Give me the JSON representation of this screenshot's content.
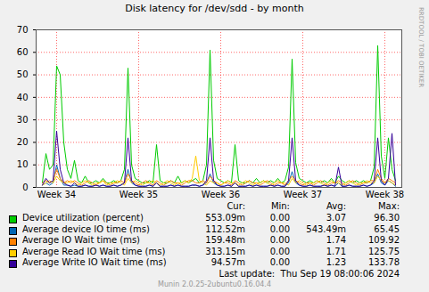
{
  "chart_data": {
    "type": "line",
    "title": "Disk latency for /dev/sdd - by month",
    "categories": [
      null,
      null,
      null,
      null,
      "Week 34",
      null,
      null,
      null,
      null,
      null,
      null,
      null,
      null,
      null,
      null,
      null,
      null,
      null,
      null,
      null,
      null,
      null,
      null,
      null,
      null,
      null,
      null,
      "Week 35",
      null,
      null,
      null,
      null,
      null,
      null,
      null,
      null,
      null,
      null,
      null,
      null,
      null,
      null,
      null,
      null,
      null,
      null,
      null,
      null,
      null,
      null,
      "Week 36",
      null,
      null,
      null,
      null,
      null,
      null,
      null,
      null,
      null,
      null,
      null,
      null,
      null,
      null,
      null,
      null,
      null,
      null,
      null,
      null,
      null,
      null,
      "Week 37",
      null,
      null,
      null,
      null,
      null,
      null,
      null,
      null,
      null,
      null,
      null,
      null,
      null,
      null,
      null,
      null,
      null,
      null,
      null,
      null,
      null,
      null,
      "Week 38",
      null,
      null,
      null
    ],
    "ylim": [
      0,
      70
    ],
    "yticks": [
      0,
      10,
      20,
      30,
      40,
      50,
      60,
      70
    ],
    "grid": true,
    "stats_header": [
      "Cur:",
      "Min:",
      "Avg:",
      "Max:"
    ],
    "series": [
      {
        "name": "Device utilization (percent)",
        "color": "#00cc00",
        "stats": [
          "553.09m",
          "0.00",
          "3.07",
          "96.30"
        ],
        "values": [
          2,
          15,
          8,
          10,
          54,
          50,
          20,
          8,
          4,
          12,
          3,
          2,
          5,
          2,
          2,
          3,
          2,
          4,
          2,
          2,
          3,
          2,
          3,
          8,
          53,
          10,
          4,
          3,
          2,
          2,
          3,
          2,
          19,
          3,
          2,
          2,
          3,
          2,
          5,
          2,
          3,
          2,
          3,
          4,
          2,
          3,
          10,
          61,
          12,
          4,
          3,
          2,
          3,
          2,
          19,
          3,
          2,
          2,
          3,
          2,
          4,
          2,
          3,
          2,
          3,
          2,
          4,
          2,
          3,
          9,
          57,
          11,
          4,
          3,
          2,
          3,
          2,
          3,
          2,
          3,
          2,
          4,
          2,
          5,
          3,
          2,
          3,
          2,
          3,
          2,
          3,
          2,
          3,
          9,
          63,
          14,
          4,
          22,
          8,
          3
        ]
      },
      {
        "name": "Average device IO time (ms)",
        "color": "#0066b3",
        "stats": [
          "112.52m",
          "0.00",
          "543.49m",
          "65.45"
        ],
        "values": [
          1,
          2,
          1,
          2,
          10,
          4,
          1,
          1,
          0.5,
          1,
          0.5,
          0.5,
          1,
          0.5,
          0.5,
          1,
          0.5,
          1,
          0.5,
          0.5,
          1,
          0.5,
          1,
          2,
          8,
          2,
          1,
          0.5,
          0.5,
          0.5,
          1,
          0.5,
          2,
          0.5,
          0.5,
          0.5,
          1,
          0.5,
          1,
          0.5,
          0.5,
          0.5,
          1,
          1,
          0.5,
          1,
          2,
          6,
          2,
          1,
          0.5,
          0.5,
          1,
          0.5,
          2,
          0.5,
          0.5,
          0.5,
          1,
          0.5,
          1,
          0.5,
          0.5,
          0.5,
          1,
          0.5,
          1,
          0.5,
          0.5,
          2,
          7,
          2,
          1,
          0.5,
          0.5,
          1,
          0.5,
          0.5,
          0.5,
          1,
          0.5,
          1,
          0.5,
          2,
          0.5,
          0.5,
          1,
          0.5,
          0.5,
          0.5,
          1,
          0.5,
          1,
          2,
          6,
          2,
          1,
          3,
          2,
          0.5
        ]
      },
      {
        "name": "Average IO Wait time (ms)",
        "color": "#ff8000",
        "stats": [
          "159.48m",
          "0.00",
          "1.74",
          "109.92"
        ],
        "values": [
          2,
          3,
          2,
          3,
          8,
          4,
          2,
          3,
          2,
          3,
          2,
          1,
          2,
          3,
          2,
          1,
          2,
          3,
          2,
          1,
          2,
          2,
          3,
          2,
          6,
          3,
          2,
          1,
          2,
          3,
          2,
          1,
          3,
          2,
          1,
          2,
          3,
          2,
          2,
          1,
          2,
          3,
          3,
          2,
          2,
          3,
          2,
          5,
          3,
          2,
          1,
          2,
          2,
          1,
          3,
          2,
          1,
          2,
          3,
          2,
          2,
          1,
          2,
          3,
          2,
          1,
          2,
          2,
          1,
          3,
          5,
          3,
          2,
          1,
          2,
          2,
          1,
          2,
          3,
          2,
          1,
          2,
          2,
          3,
          2,
          1,
          2,
          3,
          2,
          1,
          2,
          2,
          3,
          3,
          8,
          4,
          2,
          4,
          3,
          2
        ]
      },
      {
        "name": "Average Read IO Wait time (ms)",
        "color": "#ffcc00",
        "stats": [
          "313.15m",
          "0.00",
          "1.71",
          "125.75"
        ],
        "values": [
          1,
          2,
          3,
          2,
          5,
          3,
          2,
          2,
          3,
          2,
          1,
          2,
          3,
          2,
          1,
          2,
          2,
          3,
          1,
          2,
          2,
          3,
          2,
          1,
          4,
          2,
          3,
          2,
          1,
          2,
          2,
          3,
          2,
          1,
          2,
          3,
          2,
          1,
          2,
          2,
          3,
          2,
          4,
          14,
          3,
          2,
          1,
          3,
          2,
          2,
          1,
          2,
          3,
          2,
          2,
          1,
          2,
          3,
          2,
          1,
          2,
          2,
          3,
          2,
          1,
          2,
          3,
          2,
          2,
          1,
          4,
          2,
          3,
          2,
          1,
          2,
          2,
          3,
          2,
          1,
          2,
          3,
          2,
          2,
          1,
          2,
          3,
          2,
          1,
          2,
          2,
          3,
          2,
          2,
          5,
          3,
          2,
          3,
          2,
          1
        ]
      },
      {
        "name": "Average Write IO Wait time (ms)",
        "color": "#330099",
        "stats": [
          "94.57m",
          "0.00",
          "1.23",
          "133.78"
        ],
        "values": [
          1,
          4,
          2,
          3,
          25,
          8,
          2,
          1,
          0.5,
          2,
          0.5,
          0.5,
          1,
          0.5,
          0.5,
          1,
          0.5,
          1,
          0.5,
          0.5,
          1,
          0.5,
          1,
          2,
          22,
          3,
          1,
          0.5,
          0.5,
          0.5,
          1,
          0.5,
          2,
          0.5,
          0.5,
          0.5,
          1,
          0.5,
          1,
          0.5,
          0.5,
          0.5,
          1,
          1,
          0.5,
          1,
          3,
          22,
          3,
          1,
          0.5,
          0.5,
          1,
          0.5,
          2,
          0.5,
          0.5,
          0.5,
          1,
          0.5,
          1,
          0.5,
          0.5,
          0.5,
          1,
          0.5,
          1,
          0.5,
          0.5,
          3,
          22,
          3,
          1,
          0.5,
          0.5,
          1,
          0.5,
          0.5,
          0.5,
          1,
          0.5,
          1,
          0.5,
          9,
          0.5,
          0.5,
          1,
          0.5,
          0.5,
          0.5,
          1,
          0.5,
          1,
          3,
          22,
          3,
          1,
          4,
          24,
          1
        ]
      }
    ],
    "footer": "Last update:  Thu Sep 19 08:00:06 2024",
    "caption": "Munin 2.0.25-2ubuntu0.16.04.4",
    "watermark": "RRDTOOL / TOBI OETIKER"
  }
}
